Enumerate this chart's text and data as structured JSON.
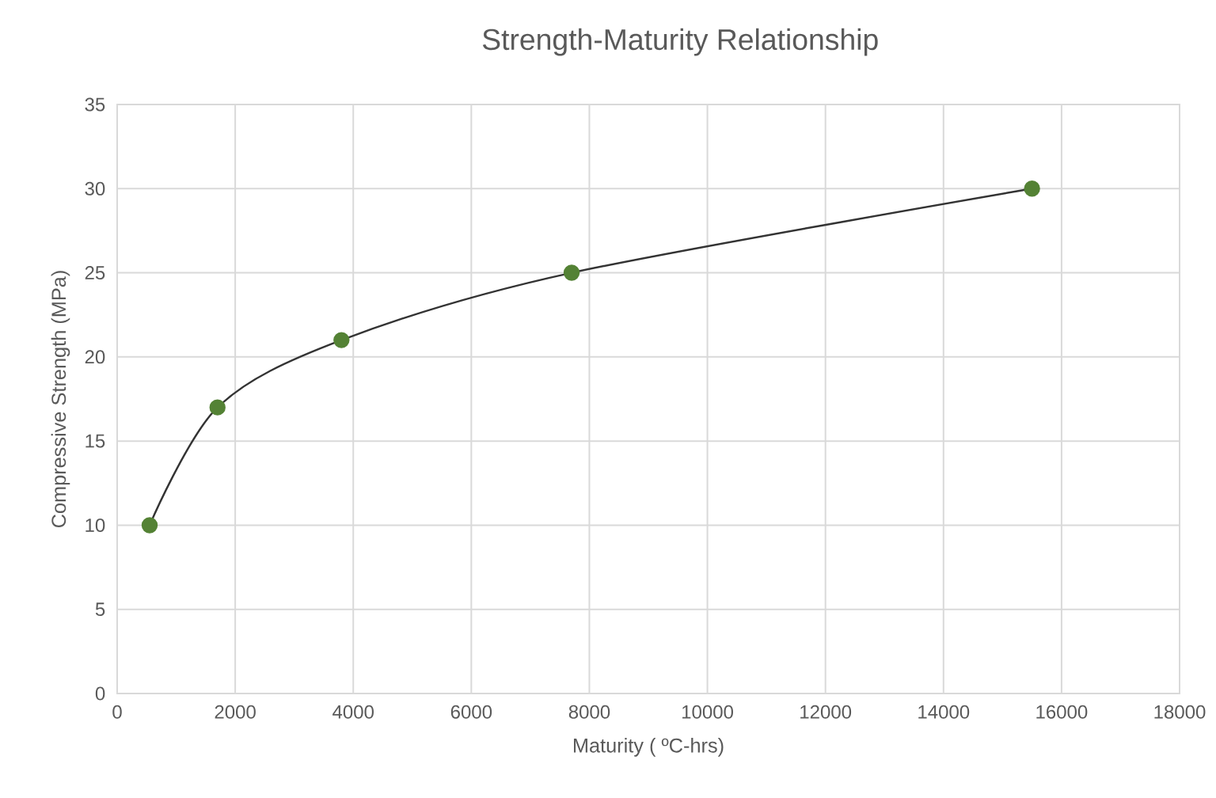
{
  "chart_data": {
    "type": "line",
    "title": "Strength-Maturity Relationship",
    "xlabel": "Maturity ( ºC-hrs)",
    "ylabel": "Compressive Strength  (MPa)",
    "x": [
      550,
      1700,
      3800,
      7700,
      15500
    ],
    "series": [
      {
        "color": "#548235",
        "values": [
          10,
          17,
          21,
          25,
          30
        ]
      }
    ],
    "xlim": [
      0,
      18000
    ],
    "ylim": [
      0,
      35
    ],
    "xticks": [
      0,
      2000,
      4000,
      6000,
      8000,
      10000,
      12000,
      14000,
      16000,
      18000
    ],
    "yticks": [
      0,
      5,
      10,
      15,
      20,
      25,
      30,
      35
    ],
    "grid": true,
    "marker": "circle",
    "line_style": "solid"
  }
}
